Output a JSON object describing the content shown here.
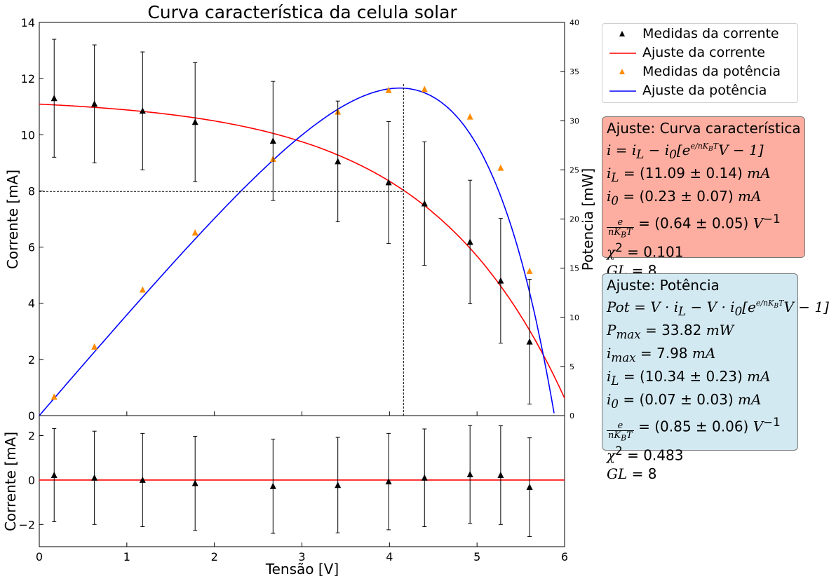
{
  "figure": {
    "title": "Curva característica da celula solar",
    "xlabel": "Tensão [V]",
    "ylabel_top": "Corrente [mA]",
    "ylabel_right": "Potencia [mW]",
    "ylabel_bottom": "Corrente [mA]",
    "x_ticks": [
      "0",
      "1",
      "2",
      "3",
      "4",
      "5",
      "6"
    ],
    "y_ticks_top": [
      "0",
      "2",
      "4",
      "6",
      "8",
      "10",
      "12",
      "14"
    ],
    "y_ticks_right": [
      "0",
      "5",
      "10",
      "15",
      "20",
      "25",
      "30",
      "35",
      "40"
    ],
    "y_ticks_bottom": [
      "−2",
      "0",
      "2"
    ]
  },
  "legend": [
    {
      "label": "Medidas da corrente",
      "symbol": "triangle-icon",
      "color": "#000000"
    },
    {
      "label": "Ajuste da corrente",
      "symbol": "line-icon",
      "color": "#ff0000"
    },
    {
      "label": "Medidas da potência",
      "symbol": "triangle-icon",
      "color": "#ff8c00"
    },
    {
      "label": "Ajuste da potência",
      "symbol": "line-icon",
      "color": "#0000ff"
    }
  ],
  "fit_box_1": {
    "title": "Ajuste: Curva característica",
    "l1_a": "i = i",
    "l1_b": "L",
    "l1_c": " − i",
    "l1_d": "0",
    "l1_e": "[e",
    "l1_f": "V − 1]",
    "l2_a": "i",
    "l2_b": "L",
    "l2_c": " = (11.09 ± 0.14) ",
    "l2_d": "mA",
    "l3_a": "i",
    "l3_b": "0",
    "l3_c": " = (0.23 ± 0.07) ",
    "l3_d": "mA",
    "frac_num": "e",
    "frac_den": "nK",
    "frac_den_sub": "B",
    "frac_den_end": "T",
    "l4_c": " = (0.64 ± 0.05) ",
    "l4_d": "V",
    "l4_e": "−1",
    "chi_a": "χ",
    "chi_b": "2",
    "chi_c": " = 0.101",
    "gl_a": "GL",
    "gl_b": " = 8"
  },
  "fit_box_2": {
    "title": "Ajuste: Potência",
    "l1_a": "Pot = V · i",
    "l1_b": "L",
    "l1_c": " − V · i",
    "l1_d": "0",
    "l1_e": "[e",
    "l1_f": "V − 1]",
    "l2_a": "P",
    "l2_b": "max",
    "l2_c": " = 33.82 ",
    "l2_d": "mW",
    "l3_a": "i",
    "l3_b": "max",
    "l3_c": " = 7.98 ",
    "l3_d": "mA",
    "l4_a": "i",
    "l4_b": "L",
    "l4_c": " = (10.34 ± 0.23) ",
    "l4_d": "mA",
    "l5_a": "i",
    "l5_b": "0",
    "l5_c": " = (0.07 ± 0.03) ",
    "l5_d": "mA",
    "frac_num": "e",
    "frac_den": "nK",
    "frac_den_sub": "B",
    "frac_den_end": "T",
    "l6_c": " = (0.85 ± 0.06) ",
    "l6_d": "V",
    "l6_e": "−1",
    "chi_a": "χ",
    "chi_b": "2",
    "chi_c": " = 0.483",
    "gl_a": "GL",
    "gl_b": " = 8"
  },
  "chart_data": [
    {
      "type": "scatter",
      "title": "Curva característica da celula solar",
      "xlabel": "Tensão [V]",
      "ylabel": "Corrente [mA]",
      "y2label": "Potencia [mW]",
      "xlim": [
        0,
        6
      ],
      "ylim": [
        0,
        14
      ],
      "y2lim": [
        0,
        40
      ],
      "colors": {
        "current_points": "#000000",
        "current_fit": "#ff0000",
        "power_points": "#ff8c00",
        "power_fit": "#0000ff"
      },
      "current_points": [
        {
          "x": 0.17,
          "y": 11.3,
          "err": 2.1
        },
        {
          "x": 0.63,
          "y": 11.1,
          "err": 2.1
        },
        {
          "x": 1.18,
          "y": 10.85,
          "err": 2.1
        },
        {
          "x": 1.78,
          "y": 10.45,
          "err": 2.12
        },
        {
          "x": 2.67,
          "y": 9.78,
          "err": 2.12
        },
        {
          "x": 3.41,
          "y": 9.05,
          "err": 2.15
        },
        {
          "x": 3.99,
          "y": 8.3,
          "err": 2.17
        },
        {
          "x": 4.4,
          "y": 7.55,
          "err": 2.2
        },
        {
          "x": 4.92,
          "y": 6.18,
          "err": 2.2
        },
        {
          "x": 5.27,
          "y": 4.8,
          "err": 2.22
        },
        {
          "x": 5.6,
          "y": 2.63,
          "err": 2.22
        }
      ],
      "power_points": [
        {
          "x": 0.17,
          "y": 1.9
        },
        {
          "x": 0.63,
          "y": 7.0
        },
        {
          "x": 1.18,
          "y": 12.8
        },
        {
          "x": 1.78,
          "y": 18.6
        },
        {
          "x": 2.67,
          "y": 26.1
        },
        {
          "x": 3.41,
          "y": 30.9
        },
        {
          "x": 3.99,
          "y": 33.1
        },
        {
          "x": 4.4,
          "y": 33.2
        },
        {
          "x": 4.92,
          "y": 30.4
        },
        {
          "x": 5.27,
          "y": 25.2
        },
        {
          "x": 5.6,
          "y": 14.7
        }
      ],
      "current_fit": {
        "iL": 11.09,
        "i0": 0.23,
        "k": 0.64
      },
      "power_fit": {
        "iL": 10.34,
        "i0": 0.07,
        "k": 0.85
      },
      "max_power_point": {
        "x": 4.16,
        "y": 7.98
      }
    },
    {
      "type": "scatter",
      "xlabel": "Tensão [V]",
      "ylabel": "Corrente [mA]",
      "xlim": [
        0,
        6
      ],
      "ylim": [
        -3,
        2.9
      ],
      "residuals": [
        {
          "x": 0.17,
          "y": 0.22,
          "err": 2.1
        },
        {
          "x": 0.63,
          "y": 0.1,
          "err": 2.1
        },
        {
          "x": 1.18,
          "y": 0.0,
          "err": 2.1
        },
        {
          "x": 1.78,
          "y": -0.15,
          "err": 2.12
        },
        {
          "x": 2.67,
          "y": -0.28,
          "err": 2.12
        },
        {
          "x": 3.41,
          "y": -0.23,
          "err": 2.15
        },
        {
          "x": 3.99,
          "y": -0.07,
          "err": 2.17
        },
        {
          "x": 4.4,
          "y": 0.1,
          "err": 2.2
        },
        {
          "x": 4.92,
          "y": 0.25,
          "err": 2.2
        },
        {
          "x": 5.27,
          "y": 0.22,
          "err": 2.22
        },
        {
          "x": 5.6,
          "y": -0.32,
          "err": 2.22
        }
      ],
      "zero_line": 0
    }
  ]
}
